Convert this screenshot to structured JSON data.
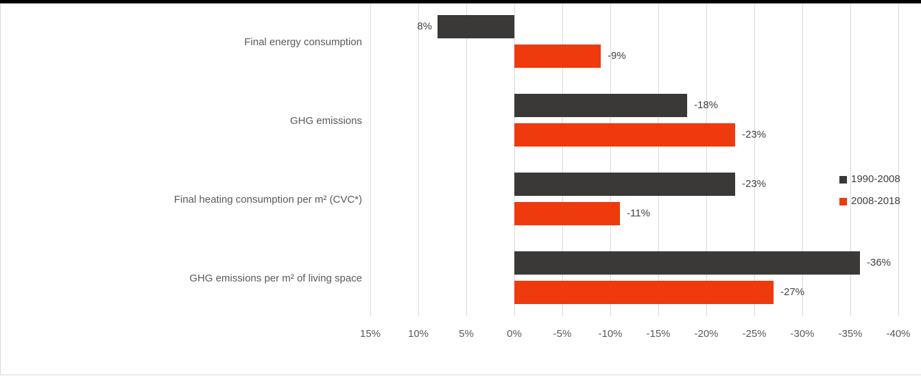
{
  "chart_data": {
    "type": "bar",
    "orientation": "horizontal",
    "title": "",
    "categories": [
      "Final energy consumption",
      "GHG emissions",
      "Final heating consumption per m² (CVC*)",
      "GHG emissions per m² of living space"
    ],
    "series": [
      {
        "name": "1990-2008",
        "color": "#3B3838",
        "values": [
          8,
          -18,
          -23,
          -36
        ],
        "data_labels": [
          "8%",
          "-18%",
          "-23%",
          "-36%"
        ]
      },
      {
        "name": "2008-2018",
        "color": "#EE3A0D",
        "values": [
          -9,
          -23,
          -11,
          -27
        ],
        "data_labels": [
          "-9%",
          "-23%",
          "-11%",
          "-27%"
        ]
      }
    ],
    "x_axis": {
      "unit": "%",
      "reversed": true,
      "range": [
        15,
        -40
      ],
      "tick_values": [
        15,
        10,
        5,
        0,
        -5,
        -10,
        -15,
        -20,
        -25,
        -30,
        -35,
        -40
      ],
      "tick_labels": [
        "15%",
        "10%",
        "5%",
        "0%",
        "-5%",
        "-10%",
        "-15%",
        "-20%",
        "-25%",
        "-30%",
        "-35%",
        "-40%"
      ]
    },
    "legend": {
      "position": "middle-right",
      "entries": [
        "1990-2008",
        "2008-2018"
      ]
    },
    "gridlines": true,
    "colors": {
      "gridline": "#D9D9D9",
      "axis_text": "#595959",
      "data_label_text": "#404040",
      "legend_text": "#404040",
      "top_bar": "#000000",
      "border": "#D9D9D9",
      "background": "#FFFFFF"
    }
  }
}
